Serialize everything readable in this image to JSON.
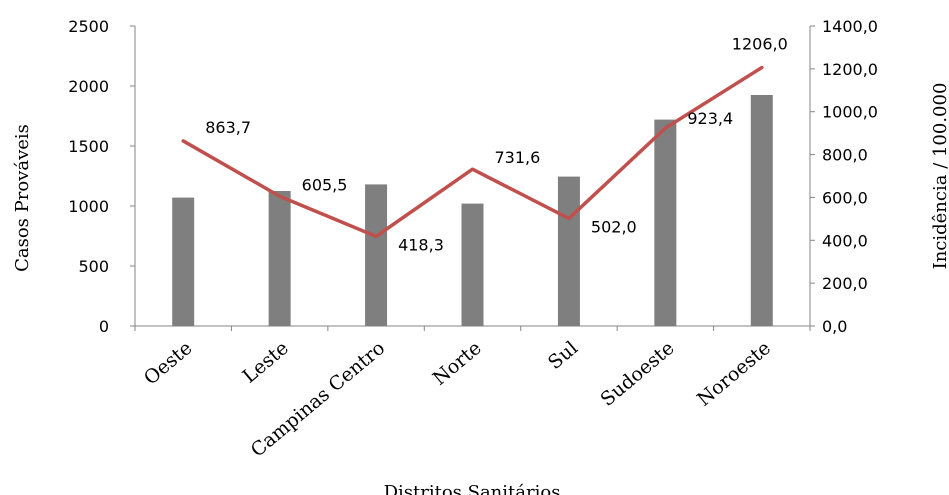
{
  "chart_data": {
    "type": "bar+line",
    "xlabel": "Distritos Sanitários",
    "ylabel": "Casos Prováveis",
    "y2label": "Incidência / 100.000",
    "categories": [
      "Oeste",
      "Leste",
      "Campinas Centro",
      "Norte",
      "Sul",
      "Sudoeste",
      "Noroeste"
    ],
    "bars": {
      "values": [
        1070,
        1125,
        1180,
        1020,
        1245,
        1720,
        1925
      ],
      "color": "#7f7f7f"
    },
    "line": {
      "values": [
        863.7,
        605.5,
        418.3,
        731.6,
        502.0,
        923.4,
        1206.0
      ],
      "labels": [
        "863,7",
        "605,5",
        "418,3",
        "731,6",
        "502,0",
        "923,4",
        "1206,0"
      ],
      "color": "#c0504d"
    },
    "ylim": [
      0,
      2500
    ],
    "y_ticks": [
      "0",
      "500",
      "1000",
      "1500",
      "2000",
      "2500"
    ],
    "y2lim": [
      0,
      1400
    ],
    "y2_ticks": [
      "0,0",
      "200,0",
      "400,0",
      "600,0",
      "800,0",
      "1000,0",
      "1200,0",
      "1400,0"
    ],
    "grid": false,
    "legend": "none"
  }
}
